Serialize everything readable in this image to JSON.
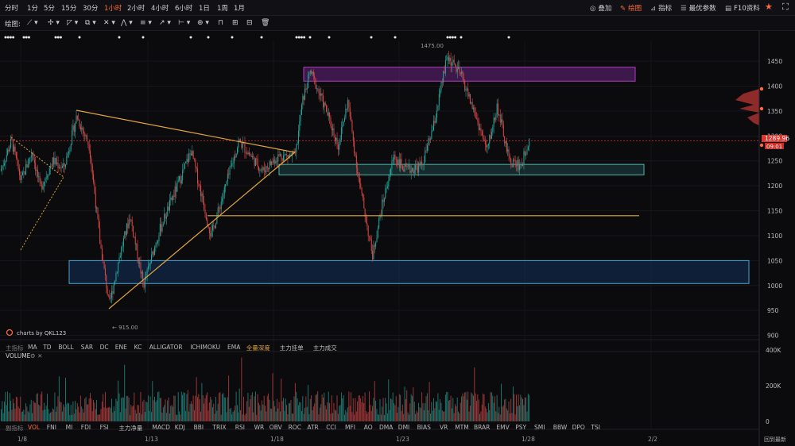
{
  "timeframes": {
    "items": [
      "分时",
      "1分",
      "5分",
      "15分",
      "30分",
      "1小时",
      "2小时",
      "4小时",
      "6小时",
      "1日",
      "1周",
      "1月"
    ],
    "active": "1小时"
  },
  "top_right": {
    "overlay": "叠加",
    "draw": "绘图",
    "indicator": "指标",
    "best_params": "最优参数",
    "f10": "F10资料"
  },
  "drawbar": {
    "label": "绘图:"
  },
  "price_axis": {
    "ticks": [
      "1450",
      "1400",
      "1350",
      "1300",
      "1250",
      "1200",
      "1150",
      "1100",
      "1050",
      "1000",
      "950",
      "900"
    ],
    "current_price": "1289.96",
    "countdown": "09:01"
  },
  "annotations": {
    "high": "1475.00",
    "low": "← 915.00"
  },
  "watermark": "charts by QKL123",
  "main_indicators": {
    "label": "主指标",
    "items": [
      "MA",
      "TD",
      "BOLL",
      "SAR",
      "DC",
      "ENE",
      "KC",
      "ALLIGATOR",
      "ICHIMOKU",
      "EMA"
    ],
    "extra": [
      "全量深度",
      "主力挂单",
      "主力成交"
    ]
  },
  "volume": {
    "label": "VOLUME",
    "ticks": [
      "400K",
      "200K",
      "0"
    ]
  },
  "sub_indicators": {
    "label": "副指标",
    "items": [
      "VOL",
      "FNI",
      "MI",
      "FDI",
      "FSI",
      "主力净量",
      "MACD",
      "KDJ",
      "BBI",
      "TRIX",
      "RSI",
      "WR",
      "OBV",
      "ROC",
      "ATR",
      "CCI",
      "MFI",
      "AO",
      "DMA",
      "DMI",
      "BIAS",
      "VR",
      "MTM",
      "BRAR",
      "EMV",
      "PSY",
      "SMI",
      "BBW",
      "DPO",
      "TSI"
    ],
    "active": "VOL"
  },
  "date_axis": {
    "labels": [
      "1/8",
      "1/13",
      "1/18",
      "1/23",
      "1/28",
      "2/2"
    ]
  },
  "coord_label": "回到最新",
  "chart_data": {
    "type": "candlestick",
    "interval": "1 hour",
    "ylim": [
      885,
      1490
    ],
    "high": 1475,
    "low": 915,
    "last_price": 1289.96,
    "annotated_extremes": [
      1475,
      915
    ],
    "volume_ylim": [
      0,
      400000
    ],
    "zones": [
      {
        "name": "resistance",
        "price_range": [
          1410,
          1438
        ],
        "color": "#b23cc2"
      },
      {
        "name": "support",
        "price_range": [
          1222,
          1243
        ],
        "color": "#4fb6b0"
      },
      {
        "name": "support",
        "price_range": [
          1004,
          1050
        ],
        "color": "#4aa6d6"
      }
    ],
    "level_line": 1140,
    "legend": "none",
    "grid": true
  }
}
